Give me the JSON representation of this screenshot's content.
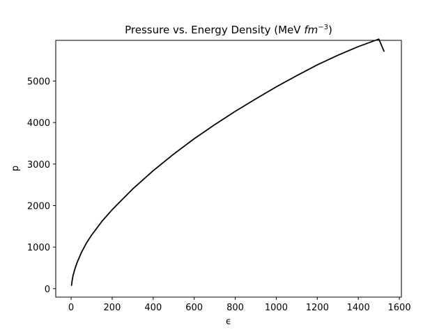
{
  "chart_data": {
    "type": "line",
    "title_main": "Pressure vs. Energy Density (MeV ",
    "title_unit": "fm",
    "title_exp": "−3",
    "title_close": ")",
    "xlabel": "ϵ",
    "ylabel": "p",
    "xlim": [
      -75,
      1610
    ],
    "ylim": [
      -205,
      5980
    ],
    "xticks": [
      0,
      200,
      400,
      600,
      800,
      1000,
      1200,
      1400,
      1600
    ],
    "yticks": [
      0,
      1000,
      2000,
      3000,
      4000,
      5000
    ],
    "grid": false,
    "series": [
      {
        "color": "#000000",
        "x": [
          2,
          5,
          10,
          20,
          30,
          50,
          75,
          100,
          150,
          200,
          300,
          400,
          500,
          600,
          700,
          800,
          900,
          1000,
          1100,
          1200,
          1300,
          1400,
          1500,
          1525
        ],
        "y": [
          80,
          200,
          330,
          500,
          640,
          870,
          1100,
          1290,
          1620,
          1900,
          2400,
          2840,
          3240,
          3610,
          3950,
          4270,
          4570,
          4860,
          5130,
          5390,
          5620,
          5830,
          6010,
          5720
        ]
      }
    ]
  }
}
